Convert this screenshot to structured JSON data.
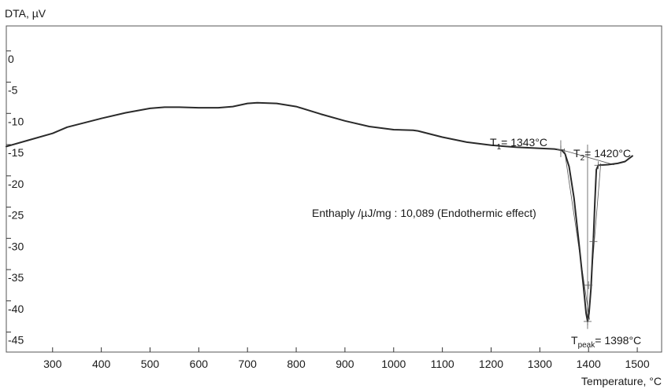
{
  "chart_data": {
    "type": "line",
    "title": "",
    "xlabel": "Temperature, °C",
    "ylabel": "DTA, µV",
    "xlim": [
      205,
      1550
    ],
    "ylim": [
      -48.2,
      4.0
    ],
    "x_ticks": [
      300,
      400,
      500,
      600,
      700,
      800,
      900,
      1000,
      1100,
      1200,
      1300,
      1400,
      1500
    ],
    "y_ticks": [
      0,
      -5,
      -10,
      -15,
      -20,
      -25,
      -30,
      -35,
      -40,
      -45
    ],
    "grid": false,
    "series": [
      {
        "x": [
          205,
          250,
          300,
          330,
          400,
          450,
          500,
          530,
          560,
          600,
          640,
          670,
          700,
          720,
          760,
          800,
          850,
          900,
          950,
          1000,
          1040,
          1050,
          1100,
          1150,
          1200,
          1250,
          1300,
          1330,
          1345,
          1352,
          1360,
          1370,
          1380,
          1390,
          1395,
          1398,
          1401,
          1405,
          1410,
          1413,
          1416,
          1420,
          1440,
          1460,
          1475,
          1490
        ],
        "y": [
          -15.3,
          -14.3,
          -13.2,
          -12.2,
          -10.8,
          -9.9,
          -9.2,
          -9.0,
          -9.0,
          -9.1,
          -9.1,
          -8.9,
          -8.4,
          -8.3,
          -8.4,
          -8.9,
          -10.1,
          -11.2,
          -12.1,
          -12.6,
          -12.7,
          -12.8,
          -13.8,
          -14.6,
          -15.1,
          -15.4,
          -15.6,
          -15.7,
          -15.9,
          -16.5,
          -18.5,
          -23.5,
          -30.5,
          -38.0,
          -42.0,
          -43.3,
          -42.0,
          -38.0,
          -30.0,
          -24.0,
          -19.0,
          -18.3,
          -18.2,
          -18.0,
          -17.7,
          -16.8
        ]
      }
    ],
    "annotations": {
      "t1": {
        "label": "T",
        "sub": "1",
        "value": "= 1343°C",
        "x": 1343,
        "y": -15.8
      },
      "t2": {
        "label": "T",
        "sub": "2",
        "value": "= 1420°C",
        "x": 1420,
        "y": -18.3
      },
      "tpeak": {
        "label": "T",
        "sub": "peak",
        "value": "= 1398°C",
        "x": 1398,
        "y": -43.3
      },
      "enthalpy": "Enthaply /µJ/mg : 10,089 (Endothermic effect)"
    }
  },
  "colors": {
    "curve": "#2a2a2a",
    "frame": "#555555",
    "text": "#1a1a1a"
  }
}
